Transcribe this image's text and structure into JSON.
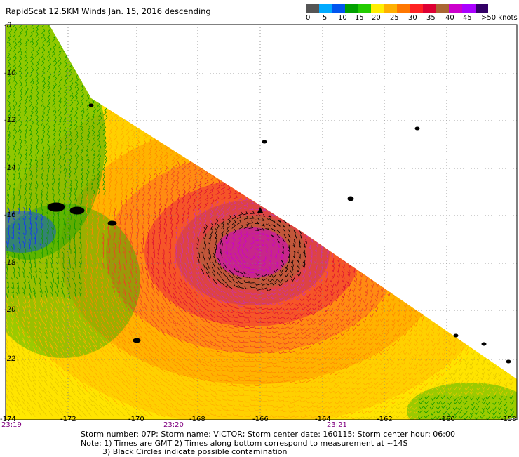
{
  "title": "RapidScat 12.5KM Winds Jan. 15, 2016 descending",
  "colorbar": {
    "colors": [
      "#555555",
      "#00aaff",
      "#0055ee",
      "#00a000",
      "#22cc00",
      "#ffee00",
      "#ffb000",
      "#ff7700",
      "#ff2222",
      "#dd0033",
      "#aa6633",
      "#cc00cc",
      "#aa00ff",
      "#330066"
    ],
    "labels": [
      "0",
      "5",
      "10",
      "15",
      "20",
      "25",
      "30",
      "35",
      "40",
      "45",
      ">50 knots"
    ]
  },
  "axes": {
    "y_labels": [
      "-8",
      "-10",
      "-12",
      "-14",
      "-16",
      "-18",
      "-20",
      "-22"
    ],
    "x_labels": [
      "-174",
      "-172",
      "-170",
      "-168",
      "-166",
      "-164",
      "-162",
      "-160",
      "-158"
    ],
    "time_labels": [
      "23:19",
      "23:20",
      "23:21"
    ]
  },
  "storm_center_marker": "▲",
  "footer": {
    "line1": "Storm number: 07P;  Storm name: VICTOR;  Storm center date: 160115;  Storm center hour: 06:00",
    "line2": "Note: 1) Times are GMT  2) Times along bottom correspond to measurement at ~14S",
    "line3": "3) Black Circles indicate possible contamination"
  },
  "legend_colors": {
    "axis": "#000000",
    "grid": "#808080",
    "time": "#800080",
    "land": "#000000"
  }
}
